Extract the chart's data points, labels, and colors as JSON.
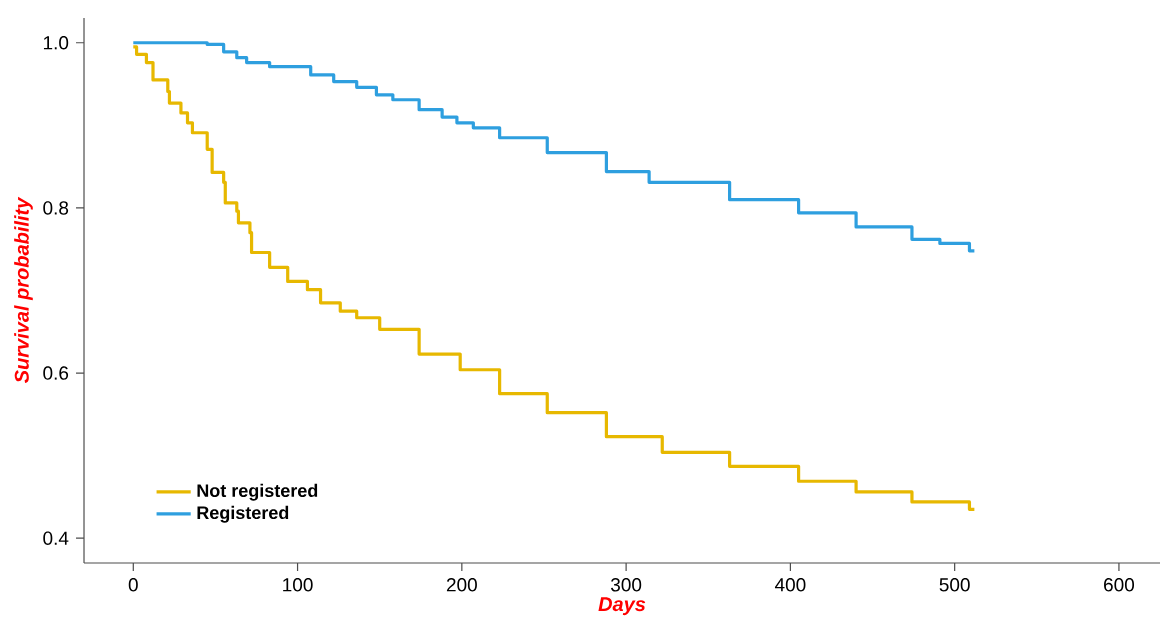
{
  "chart_data": {
    "type": "step",
    "xlabel": "Days",
    "ylabel": "Survival probability",
    "xlim": [
      -30,
      625
    ],
    "ylim": [
      0.37,
      1.03
    ],
    "xticks": [
      0,
      100,
      200,
      300,
      400,
      500,
      600
    ],
    "yticks": [
      0.4,
      0.6,
      0.8,
      {
        "value": 1,
        "label": "1.0"
      }
    ],
    "grid": false,
    "legend": "bottom left",
    "line_style": "solid",
    "series": [
      {
        "name": "Not registered",
        "color": "#e7b800",
        "x": [
          0,
          2,
          8,
          12,
          21,
          22,
          29,
          33,
          36,
          45,
          48,
          55,
          56,
          63,
          64,
          71,
          72,
          83,
          94,
          106,
          114,
          126,
          136,
          150,
          174,
          199,
          223,
          252,
          288,
          322,
          363,
          405,
          440,
          474,
          509,
          512
        ],
        "values": [
          0.995,
          0.986,
          0.976,
          0.955,
          0.941,
          0.927,
          0.915,
          0.903,
          0.891,
          0.871,
          0.843,
          0.831,
          0.806,
          0.796,
          0.782,
          0.77,
          0.746,
          0.728,
          0.711,
          0.701,
          0.685,
          0.675,
          0.667,
          0.653,
          0.623,
          0.604,
          0.575,
          0.552,
          0.523,
          0.504,
          0.487,
          0.469,
          0.456,
          0.444,
          0.435,
          0.435
        ]
      },
      {
        "name": "Registered",
        "color": "#2e9fdf",
        "x": [
          0,
          45,
          55,
          63,
          69,
          83,
          108,
          122,
          136,
          148,
          158,
          174,
          188,
          197,
          207,
          223,
          252,
          288,
          314,
          363,
          405,
          440,
          474,
          491,
          509,
          512
        ],
        "values": [
          1.0,
          0.998,
          0.989,
          0.982,
          0.976,
          0.971,
          0.961,
          0.953,
          0.946,
          0.937,
          0.931,
          0.919,
          0.91,
          0.903,
          0.897,
          0.885,
          0.867,
          0.844,
          0.831,
          0.81,
          0.794,
          0.777,
          0.762,
          0.757,
          0.748,
          0.748
        ]
      }
    ]
  }
}
